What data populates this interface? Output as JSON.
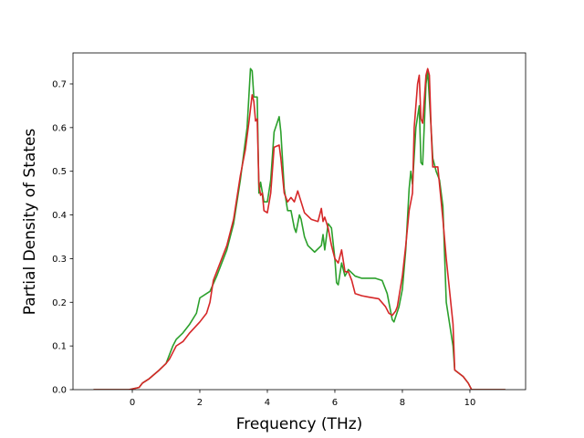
{
  "chart_data": {
    "type": "line",
    "xlabel": "Frequency (THz)",
    "ylabel": "Partial Density of States",
    "xlim": [
      -1.757,
      11.65
    ],
    "ylim": [
      0,
      0.771
    ],
    "xticks": [
      0,
      2,
      4,
      6,
      8,
      10
    ],
    "yticks": [
      {
        "value": 0,
        "label": "0.0"
      },
      0.1,
      0.2,
      0.3,
      0.4,
      0.5,
      0.6,
      0.7
    ],
    "grid": false,
    "series": [
      {
        "color": "#2ca02c",
        "x": [
          -1.15,
          -0.1,
          0.2,
          0.3,
          0.5,
          0.8,
          1.0,
          1.1,
          1.2,
          1.3,
          1.5,
          1.7,
          1.9,
          2.0,
          2.2,
          2.3,
          2.5,
          2.8,
          3.0,
          3.2,
          3.4,
          3.5,
          3.55,
          3.6,
          3.7,
          3.75,
          3.8,
          3.9,
          4.0,
          4.1,
          4.2,
          4.35,
          4.4,
          4.5,
          4.6,
          4.7,
          4.8,
          4.85,
          4.95,
          5.0,
          5.1,
          5.2,
          5.4,
          5.6,
          5.65,
          5.7,
          5.8,
          5.9,
          6.0,
          6.05,
          6.1,
          6.2,
          6.3,
          6.4,
          6.6,
          6.8,
          7.0,
          7.2,
          7.4,
          7.55,
          7.7,
          7.75,
          7.9,
          8.0,
          8.1,
          8.2,
          8.25,
          8.3,
          8.4,
          8.5,
          8.55,
          8.6,
          8.7,
          8.75,
          8.85,
          8.9,
          9.0,
          9.1,
          9.2,
          9.3,
          9.5,
          9.55,
          9.8,
          9.95,
          10.05,
          11.05
        ],
        "values": [
          0,
          0,
          0.005,
          0.015,
          0.025,
          0.045,
          0.06,
          0.08,
          0.1,
          0.115,
          0.13,
          0.15,
          0.175,
          0.21,
          0.22,
          0.225,
          0.26,
          0.32,
          0.38,
          0.48,
          0.6,
          0.735,
          0.73,
          0.67,
          0.67,
          0.45,
          0.475,
          0.43,
          0.43,
          0.48,
          0.59,
          0.625,
          0.59,
          0.46,
          0.41,
          0.41,
          0.37,
          0.36,
          0.4,
          0.39,
          0.35,
          0.33,
          0.315,
          0.33,
          0.355,
          0.32,
          0.38,
          0.37,
          0.3,
          0.245,
          0.24,
          0.29,
          0.26,
          0.275,
          0.26,
          0.255,
          0.255,
          0.255,
          0.25,
          0.22,
          0.16,
          0.155,
          0.19,
          0.23,
          0.32,
          0.46,
          0.5,
          0.47,
          0.6,
          0.65,
          0.52,
          0.515,
          0.7,
          0.73,
          0.6,
          0.53,
          0.5,
          0.48,
          0.42,
          0.2,
          0.1,
          0.045,
          0.03,
          0.015,
          0,
          0
        ]
      },
      {
        "color": "#d62728",
        "x": [
          -1.15,
          -0.1,
          0.2,
          0.3,
          0.5,
          0.8,
          1.0,
          1.1,
          1.2,
          1.3,
          1.5,
          1.7,
          2.0,
          2.2,
          2.3,
          2.4,
          2.6,
          2.8,
          3.0,
          3.2,
          3.35,
          3.45,
          3.55,
          3.6,
          3.65,
          3.7,
          3.75,
          3.8,
          3.85,
          3.9,
          4.0,
          4.1,
          4.2,
          4.35,
          4.4,
          4.5,
          4.6,
          4.7,
          4.8,
          4.9,
          5.0,
          5.1,
          5.3,
          5.5,
          5.6,
          5.65,
          5.7,
          5.8,
          5.9,
          6.0,
          6.1,
          6.2,
          6.3,
          6.4,
          6.5,
          6.6,
          6.8,
          7.0,
          7.3,
          7.5,
          7.6,
          7.7,
          7.8,
          7.85,
          8.0,
          8.1,
          8.2,
          8.3,
          8.35,
          8.45,
          8.5,
          8.55,
          8.6,
          8.7,
          8.75,
          8.8,
          8.85,
          8.9,
          9.05,
          9.2,
          9.3,
          9.5,
          9.55,
          9.8,
          9.95,
          10.05,
          11.05
        ],
        "values": [
          0,
          0,
          0.005,
          0.015,
          0.025,
          0.045,
          0.06,
          0.07,
          0.085,
          0.1,
          0.11,
          0.13,
          0.155,
          0.175,
          0.2,
          0.25,
          0.29,
          0.33,
          0.39,
          0.49,
          0.55,
          0.61,
          0.675,
          0.66,
          0.615,
          0.62,
          0.47,
          0.445,
          0.45,
          0.41,
          0.405,
          0.45,
          0.555,
          0.56,
          0.53,
          0.45,
          0.43,
          0.44,
          0.43,
          0.455,
          0.43,
          0.405,
          0.39,
          0.385,
          0.415,
          0.385,
          0.395,
          0.37,
          0.33,
          0.3,
          0.29,
          0.32,
          0.27,
          0.27,
          0.25,
          0.22,
          0.215,
          0.212,
          0.208,
          0.19,
          0.175,
          0.17,
          0.18,
          0.19,
          0.26,
          0.33,
          0.41,
          0.45,
          0.6,
          0.7,
          0.72,
          0.62,
          0.61,
          0.72,
          0.735,
          0.72,
          0.6,
          0.51,
          0.51,
          0.39,
          0.3,
          0.15,
          0.045,
          0.03,
          0.015,
          0,
          0
        ]
      }
    ]
  }
}
